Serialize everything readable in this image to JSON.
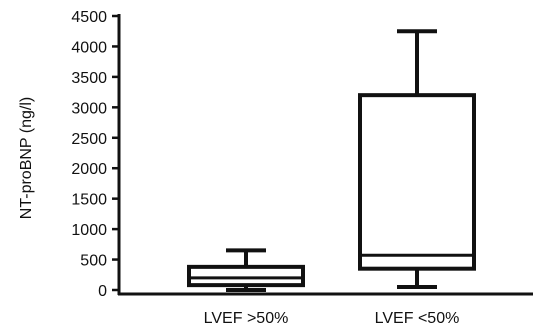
{
  "chart_data": {
    "type": "box",
    "title": "",
    "xlabel": "",
    "ylabel": "NT-proBNP (ng/l)",
    "ylim": [
      0,
      4500
    ],
    "yticks": [
      "0",
      "500",
      "1000",
      "1500",
      "2000",
      "2500",
      "3000",
      "3500",
      "4000",
      "4500"
    ],
    "categories": [
      "LVEF >50%",
      "LVEF <50%"
    ],
    "boxes": [
      {
        "category": "LVEF >50%",
        "min": 0,
        "q1": 80,
        "median": 200,
        "q3": 380,
        "max": 650
      },
      {
        "category": "LVEF <50%",
        "min": 50,
        "q1": 350,
        "median": 570,
        "q3": 3200,
        "max": 4250
      }
    ],
    "grid": false,
    "legend": "none",
    "colors": {
      "stroke": "#111111",
      "background": "#ffffff"
    }
  }
}
